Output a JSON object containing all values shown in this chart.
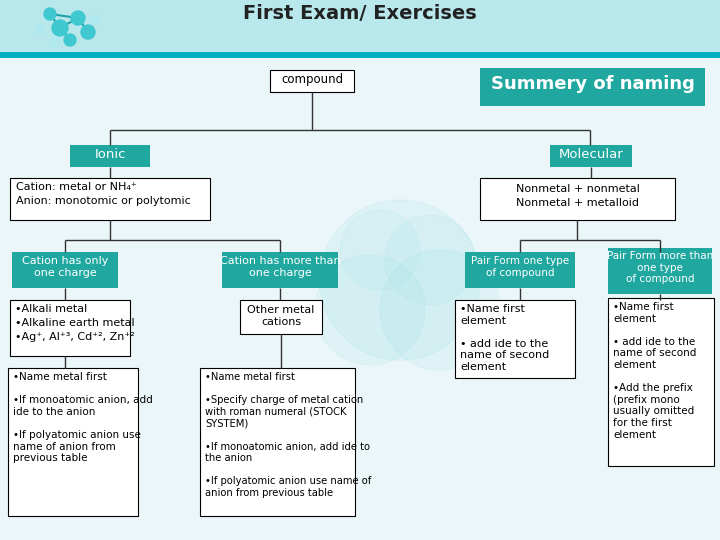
{
  "title": "First Exam/ Exercises",
  "bg_color": "#f0f8fa",
  "header_bar_color": "#b8e8ec",
  "header_line_color": "#00b0c0",
  "teal_color": "#20a8a0",
  "teal_dark": "#189890",
  "summary_box_color": "#20a8a0",
  "white": "#ffffff",
  "black": "#000000",
  "light_teal_bg": "#d8f0f4",
  "title_text": "First Exam/ Exercises",
  "compound_text": "compound",
  "summary_text": "Summery of naming",
  "ionic_text": "Ionic",
  "molecular_text": "Molecular",
  "box1_line1": "Cation: metal or NH₄⁺",
  "box1_line2": "Anion: monotomic or polytomic",
  "box2_line1": "Nonmetal + nonmetal",
  "box2_line2": "Nonmetal + metalloid",
  "cat1_text": "Cation has only\none charge",
  "cat2_text": "Cation has more than\none charge",
  "mol1_text": "Pair Form one type\nof compound",
  "mol2_text": "Pair Form more than\none type\nof compound",
  "sub1_line1": "•Alkali metal",
  "sub1_line2": "•Alkaline earth metal",
  "sub1_line3": "•Ag⁺, Al⁺³, Cd⁺², Zn⁺²",
  "sub2_text": "Other metal\ncations",
  "sub3_text": "•Name first\nelement\n\n• add ide to the\nname of second\nelement",
  "detail1_text": "•Name metal first\n\n•If monoatomic anion, add\nide to the anion\n\n•If polyatomic anion use\nname of anion from\nprevious table",
  "detail2_text": "•Name metal first\n\n•Specify charge of metal cation\nwith roman numeral (STOCK\nSYSTEM)\n\n•If monoatomic anion, add ide to\nthe anion\n\n•If polyatomic anion use name of\nanion from previous table",
  "detail3_text": "•Name first\nelement\n\n• add ide to the\nname of second\nelement\n\n•Add the prefix\n(prefix mono\nusually omitted\nfor the first\nelement"
}
